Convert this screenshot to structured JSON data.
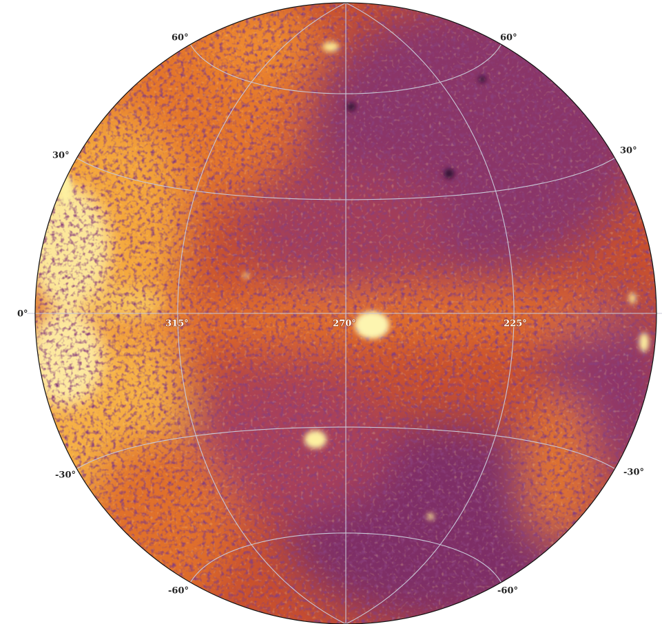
{
  "parallels": {
    "left": [
      "60°",
      "30°",
      "0°",
      "-30°",
      "-60°"
    ],
    "right": [
      "60°",
      "30°",
      "-30°",
      "-60°"
    ]
  },
  "meridians": [
    "315°",
    "270°",
    "225°"
  ]
}
